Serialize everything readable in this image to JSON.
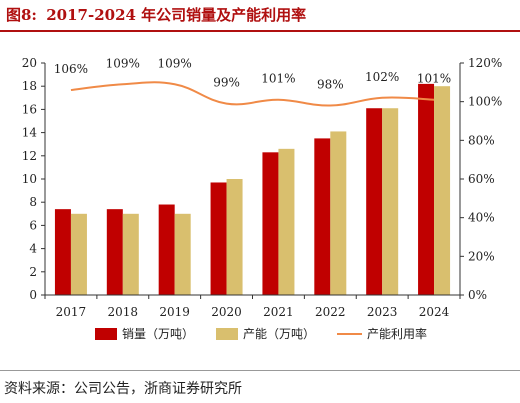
{
  "header": {
    "figure_number": "图8:",
    "title": "2017-2024 年公司销量及产能利用率"
  },
  "footer": {
    "source": "资料来源：公司公告，浙商证券研究所"
  },
  "colors": {
    "title": "#b01010",
    "sales": "#c00000",
    "capacity": "#d9bf6e",
    "utilization": "#f08a47"
  },
  "chart_data": {
    "type": "bar",
    "categories": [
      "2017",
      "2018",
      "2019",
      "2020",
      "2021",
      "2022",
      "2023",
      "2024"
    ],
    "series": [
      {
        "name": "销量（万吨）",
        "type": "bar",
        "axis": "left",
        "values": [
          7.4,
          7.4,
          7.8,
          9.7,
          12.3,
          13.5,
          16.1,
          18.2
        ]
      },
      {
        "name": "产能（万吨）",
        "type": "bar",
        "axis": "left",
        "values": [
          7.0,
          7.0,
          7.0,
          10.0,
          12.6,
          14.1,
          16.1,
          18.0
        ]
      },
      {
        "name": "产能利用率",
        "type": "line",
        "axis": "right",
        "values": [
          106,
          109,
          109,
          99,
          101,
          98,
          102,
          101
        ],
        "labels": [
          "106%",
          "109%",
          "109%",
          "99%",
          "101%",
          "98%",
          "102%",
          "101%"
        ]
      }
    ],
    "ylim": [
      0,
      20
    ],
    "yticks": [
      "0",
      "2",
      "4",
      "6",
      "8",
      "10",
      "12",
      "14",
      "16",
      "18",
      "20"
    ],
    "y2lim": [
      0,
      120
    ],
    "y2ticks": [
      "0%",
      "20%",
      "40%",
      "60%",
      "80%",
      "100%",
      "120%"
    ],
    "grid": false,
    "legend_position": "bottom"
  }
}
